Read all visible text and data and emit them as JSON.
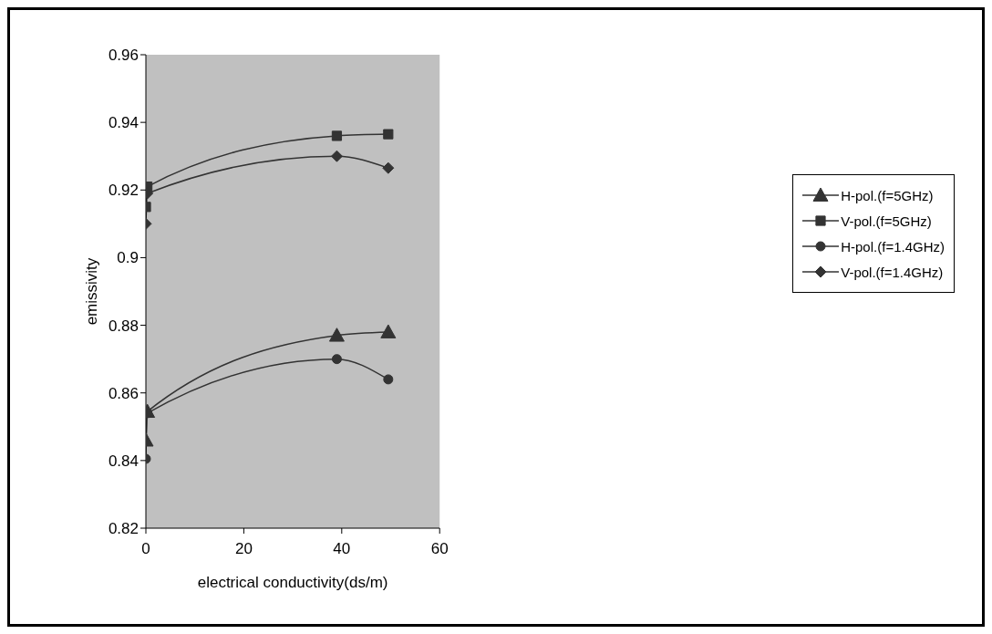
{
  "chart_data": {
    "type": "line",
    "xlabel": "electrical conductivity(ds/m)",
    "ylabel": "emissivity",
    "x": [
      0,
      0.3,
      39,
      49.5
    ],
    "xlim": [
      0,
      60
    ],
    "xticks": [
      0,
      20,
      40,
      60
    ],
    "ylim": [
      0.82,
      0.96
    ],
    "yticks": [
      0.82,
      0.84,
      0.86,
      0.88,
      0.9,
      0.92,
      0.94,
      0.96
    ],
    "grid": false,
    "legend": "right",
    "series": [
      {
        "name": "H-pol.(f=5GHz)",
        "color": "#333333",
        "marker": "triangle",
        "values": [
          0.846,
          0.8545,
          0.877,
          0.878
        ]
      },
      {
        "name": "V-pol.(f=5GHz)",
        "color": "#333333",
        "marker": "square",
        "values": [
          0.915,
          0.921,
          0.936,
          0.9365
        ]
      },
      {
        "name": "H-pol.(f=1.4GHz)",
        "color": "#333333",
        "marker": "circle",
        "values": [
          0.8405,
          0.854,
          0.87,
          0.864
        ]
      },
      {
        "name": "V-pol.(f=1.4GHz)",
        "color": "#333333",
        "marker": "diamond",
        "values": [
          0.91,
          0.919,
          0.93,
          0.9265
        ]
      }
    ]
  }
}
